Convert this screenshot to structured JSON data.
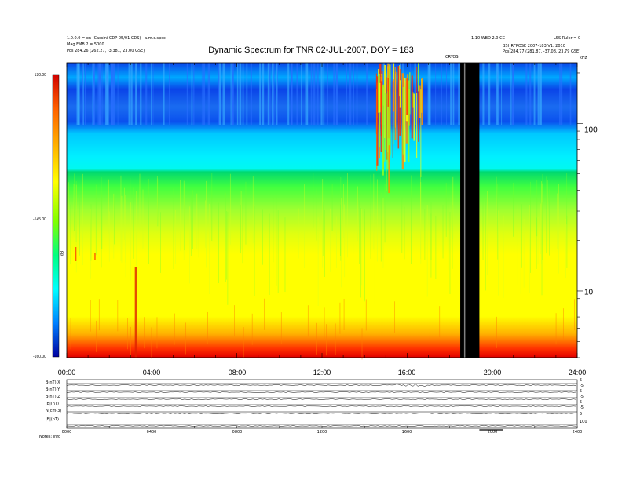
{
  "header": {
    "left_line1": "1.0.0.0 = on (Cassini CDP 05/01 CDS) · a.m.c.spsc",
    "left_line2": "Mag FMB 2 = 5000",
    "left_line3": "Pos    284.26 (262.27, -3.381, 23.00 GSE)",
    "right_line1": "1.10 WBD 2.0 CC",
    "right_line2": "LSS Ruler = 0",
    "right_line3": "BSI_RFPOSE 2007-183 V1. 2010",
    "right_line4": "Pos    284.77 (281.87, -37.08, 23.79 GSE)",
    "band_label": "CRYOS",
    "unit_right": "kHz"
  },
  "chart_data": {
    "type": "heatmap",
    "title": "Dynamic Spectrum for TNR 02-JUL-2007, DOY = 183",
    "x_range": [
      "00:00",
      "24:00"
    ],
    "x_ticks": [
      "00:00",
      "04:00",
      "08:00",
      "12:00",
      "16:00",
      "20:00",
      "24:00"
    ],
    "y_scale": "log",
    "y_range_khz": [
      4,
      230
    ],
    "y_ticks": [
      "10",
      "100"
    ],
    "colorbar_ticks": [
      "-130.00",
      "-145.00",
      "-160.00"
    ],
    "colorbar_label": "dB",
    "color_stops": [
      "#000a96",
      "#0040ff",
      "#00c8ff",
      "#00ffff",
      "#00ff60",
      "#ffff00",
      "#ff9000",
      "#ff0000",
      "#c00000"
    ],
    "data_gap_hours": [
      18.5,
      19.4
    ]
  },
  "bottom_panel": {
    "row_labels": [
      "B(nT) X",
      "B(nT) Y",
      "B(nT) Z",
      "|B|(nT)",
      "N(cm-3)",
      "|B|(nT)"
    ],
    "right_ticks": [
      "5",
      "-5",
      "5",
      "-5",
      "5",
      "-5",
      "5",
      "100"
    ],
    "x_ticks": [
      "0000",
      "0400",
      "0800",
      "1200",
      "1600",
      "2000",
      "2400"
    ],
    "footer_label": "Notes:  info"
  }
}
